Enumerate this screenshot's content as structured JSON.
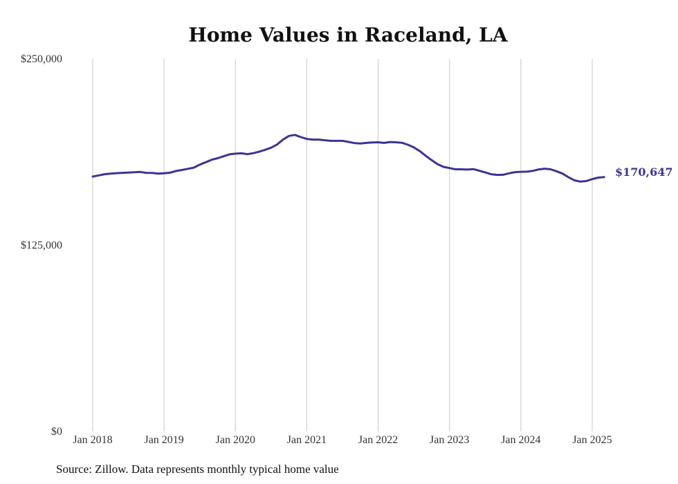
{
  "chart_data": {
    "type": "line",
    "title": "Home Values in Raceland, LA",
    "xlabel": "",
    "ylabel": "",
    "ylim": [
      0,
      250000
    ],
    "y_ticks": [
      "$0",
      "$125,000",
      "$250,000"
    ],
    "x_ticks": [
      "Jan 2018",
      "Jan 2019",
      "Jan 2020",
      "Jan 2021",
      "Jan 2022",
      "Jan 2023",
      "Jan 2024",
      "Jan 2025"
    ],
    "grid": "vertical lines at each year",
    "line_color": "#3a3494",
    "end_label": "$170,647",
    "source": "Source: Zillow. Data represents monthly typical home value",
    "x": [
      "2018-01",
      "2018-02",
      "2018-03",
      "2018-04",
      "2018-05",
      "2018-06",
      "2018-07",
      "2018-08",
      "2018-09",
      "2018-10",
      "2018-11",
      "2018-12",
      "2019-01",
      "2019-02",
      "2019-03",
      "2019-04",
      "2019-05",
      "2019-06",
      "2019-07",
      "2019-08",
      "2019-09",
      "2019-10",
      "2019-11",
      "2019-12",
      "2020-01",
      "2020-02",
      "2020-03",
      "2020-04",
      "2020-05",
      "2020-06",
      "2020-07",
      "2020-08",
      "2020-09",
      "2020-10",
      "2020-11",
      "2020-12",
      "2021-01",
      "2021-02",
      "2021-03",
      "2021-04",
      "2021-05",
      "2021-06",
      "2021-07",
      "2021-08",
      "2021-09",
      "2021-10",
      "2021-11",
      "2021-12",
      "2022-01",
      "2022-02",
      "2022-03",
      "2022-04",
      "2022-05",
      "2022-06",
      "2022-07",
      "2022-08",
      "2022-09",
      "2022-10",
      "2022-11",
      "2022-12",
      "2023-01",
      "2023-02",
      "2023-03",
      "2023-04",
      "2023-05",
      "2023-06",
      "2023-07",
      "2023-08",
      "2023-09",
      "2023-10",
      "2023-11",
      "2023-12",
      "2024-01",
      "2024-02",
      "2024-03",
      "2024-04",
      "2024-05",
      "2024-06",
      "2024-07",
      "2024-08",
      "2024-09",
      "2024-10",
      "2024-11",
      "2024-12",
      "2025-01",
      "2025-02",
      "2025-03"
    ],
    "series": [
      {
        "values": [
          171000,
          171800,
          172600,
          173000,
          173300,
          173500,
          173700,
          173900,
          174100,
          173500,
          173400,
          173000,
          173200,
          173600,
          174700,
          175400,
          176200,
          177000,
          179000,
          180600,
          182300,
          183300,
          184600,
          185900,
          186400,
          186600,
          186000,
          186700,
          187700,
          189000,
          190400,
          192500,
          195800,
          198300,
          199000,
          197500,
          196300,
          195800,
          195800,
          195400,
          195000,
          195000,
          195000,
          194300,
          193500,
          193200,
          193600,
          193900,
          194000,
          193600,
          194200,
          194000,
          193700,
          192400,
          190600,
          188100,
          185000,
          182000,
          179300,
          177500,
          176700,
          175900,
          175900,
          175700,
          176000,
          174900,
          173800,
          172600,
          172100,
          172200,
          173200,
          174000,
          174200,
          174300,
          174800,
          175800,
          176300,
          175900,
          174600,
          173000,
          170600,
          168500,
          167600,
          168000,
          169300,
          170300,
          170647
        ]
      }
    ]
  }
}
